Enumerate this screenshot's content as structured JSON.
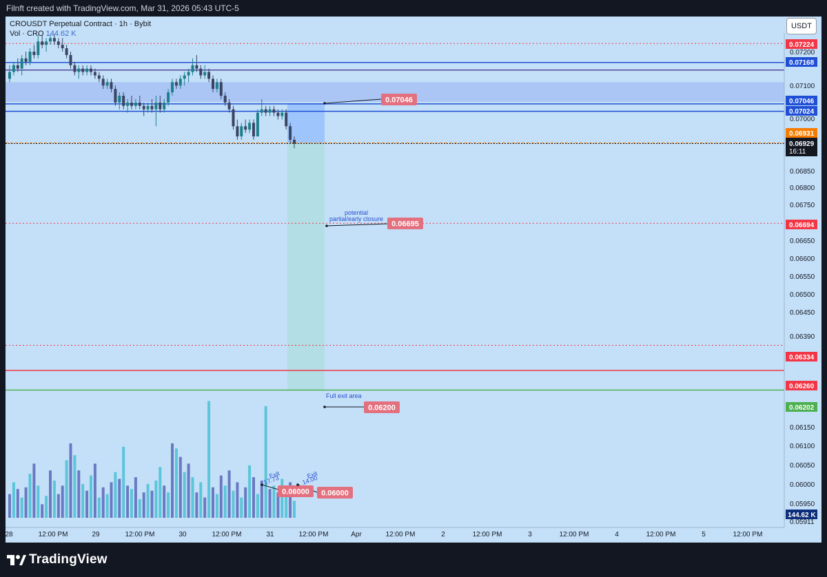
{
  "header": {
    "attribution": "Filnft created with TradingView.com, Mar 31, 2026 05:43 UTC-5"
  },
  "legend": {
    "symbol": "CROUSDT Perpetual Contract · 1h · Bybit",
    "volume_label": "Vol · CRO",
    "volume_value": "144.62 K"
  },
  "currency_button": "USDT",
  "footer": {
    "brand": "TradingView"
  },
  "colors": {
    "background": "#c4e0f8",
    "candle_up": "#1e7f8c",
    "candle_down": "#3a4563",
    "vol_up": "#5bc5d9",
    "vol_down": "#6a79c2",
    "price_line": "#1f4fd6",
    "label_red": "#e3707e",
    "label_red_strong": "#f23645",
    "label_green": "#4caf50",
    "label_orange": "#f57c00"
  },
  "chart_data": {
    "type": "candlestick",
    "interval": "1h",
    "x_axis_labels": [
      "28",
      "12:00 PM",
      "29",
      "12:00 PM",
      "30",
      "12:00 PM",
      "31",
      "12:00 PM",
      "Apr",
      "12:00 PM",
      "2",
      "12:00 PM",
      "3",
      "12:00 PM",
      "4",
      "12:00 PM",
      "5",
      "12:00 PM"
    ],
    "y_axis_ticks": [
      "0.07200",
      "0.07100",
      "0.07000",
      "0.06850",
      "0.06800",
      "0.06750",
      "0.06650",
      "0.06600",
      "0.06550",
      "0.06500",
      "0.06450",
      "0.06390",
      "0.06150",
      "0.06100",
      "0.06050",
      "0.06000",
      "0.05950",
      "0.05911"
    ],
    "horizontal_levels": [
      {
        "price": "0.07224",
        "style": "dotted",
        "tag": "red"
      },
      {
        "price": "0.07168",
        "style": "solid",
        "tag": "blue"
      },
      {
        "price": "0.07046",
        "style": "solid",
        "tag": "blue"
      },
      {
        "price": "0.07024",
        "style": "solid",
        "tag": "blue"
      },
      {
        "price": "0.06931",
        "style": "dashed",
        "tag": "orange"
      },
      {
        "price": "0.06694",
        "style": "dotted",
        "tag": "red"
      },
      {
        "price": "0.06334",
        "style": "dotted",
        "tag": "red"
      },
      {
        "price": "0.06260",
        "style": "solid",
        "tag": "red"
      },
      {
        "price": "0.06202",
        "style": "solid",
        "tag": "green"
      }
    ],
    "last_price": "0.06929",
    "countdown": "16:11",
    "volume_last": "144.62 K",
    "candles": [
      [
        0.0712,
        0.0716,
        0.0711,
        0.0714
      ],
      [
        0.0714,
        0.0717,
        0.0713,
        0.0716
      ],
      [
        0.0716,
        0.0718,
        0.0714,
        0.0715
      ],
      [
        0.0715,
        0.0719,
        0.0713,
        0.0718
      ],
      [
        0.0718,
        0.072,
        0.0716,
        0.0717
      ],
      [
        0.0717,
        0.0721,
        0.0716,
        0.072
      ],
      [
        0.072,
        0.0722,
        0.0718,
        0.0719
      ],
      [
        0.0719,
        0.0725,
        0.0718,
        0.0723
      ],
      [
        0.0723,
        0.0725,
        0.0721,
        0.0722
      ],
      [
        0.0722,
        0.0724,
        0.072,
        0.0723
      ],
      [
        0.0723,
        0.0725,
        0.0722,
        0.0724
      ],
      [
        0.0724,
        0.0725,
        0.0722,
        0.0723
      ],
      [
        0.0723,
        0.0724,
        0.0721,
        0.0722
      ],
      [
        0.0722,
        0.0724,
        0.072,
        0.0721
      ],
      [
        0.0721,
        0.0722,
        0.0718,
        0.0719
      ],
      [
        0.0719,
        0.072,
        0.0715,
        0.0716
      ],
      [
        0.0716,
        0.0717,
        0.0713,
        0.0714
      ],
      [
        0.0714,
        0.0716,
        0.0712,
        0.0715
      ],
      [
        0.0715,
        0.0716,
        0.0713,
        0.0714
      ],
      [
        0.0714,
        0.0716,
        0.0713,
        0.0715
      ],
      [
        0.0715,
        0.0716,
        0.0713,
        0.0714
      ],
      [
        0.0714,
        0.0715,
        0.0712,
        0.0713
      ],
      [
        0.0713,
        0.0714,
        0.0711,
        0.0712
      ],
      [
        0.0712,
        0.0713,
        0.0709,
        0.071
      ],
      [
        0.071,
        0.0712,
        0.0709,
        0.0711
      ],
      [
        0.0711,
        0.0712,
        0.0708,
        0.0709
      ],
      [
        0.0709,
        0.071,
        0.0704,
        0.0705
      ],
      [
        0.0705,
        0.0708,
        0.0703,
        0.0707
      ],
      [
        0.0707,
        0.0708,
        0.0703,
        0.0704
      ],
      [
        0.0704,
        0.0706,
        0.0702,
        0.0705
      ],
      [
        0.0705,
        0.0707,
        0.0703,
        0.0704
      ],
      [
        0.0704,
        0.0706,
        0.0703,
        0.0705
      ],
      [
        0.0705,
        0.0707,
        0.0703,
        0.0704
      ],
      [
        0.0704,
        0.0705,
        0.0701,
        0.0703
      ],
      [
        0.0703,
        0.0705,
        0.0702,
        0.0704
      ],
      [
        0.0704,
        0.0706,
        0.0702,
        0.0703
      ],
      [
        0.0703,
        0.0707,
        0.0698,
        0.0705
      ],
      [
        0.0705,
        0.0707,
        0.0702,
        0.0703
      ],
      [
        0.0703,
        0.0706,
        0.0702,
        0.0705
      ],
      [
        0.0705,
        0.0709,
        0.0704,
        0.0708
      ],
      [
        0.0708,
        0.0712,
        0.0707,
        0.0711
      ],
      [
        0.0711,
        0.0712,
        0.0709,
        0.071
      ],
      [
        0.071,
        0.0713,
        0.0709,
        0.0712
      ],
      [
        0.0712,
        0.0714,
        0.071,
        0.0713
      ],
      [
        0.0713,
        0.0715,
        0.0711,
        0.0714
      ],
      [
        0.0714,
        0.0718,
        0.0713,
        0.0716
      ],
      [
        0.0716,
        0.0719,
        0.0714,
        0.0715
      ],
      [
        0.0715,
        0.0716,
        0.0712,
        0.0713
      ],
      [
        0.0713,
        0.0716,
        0.0712,
        0.0714
      ],
      [
        0.0714,
        0.0715,
        0.0711,
        0.0712
      ],
      [
        0.0712,
        0.0713,
        0.0708,
        0.0709
      ],
      [
        0.0709,
        0.0712,
        0.0708,
        0.0711
      ],
      [
        0.0711,
        0.0712,
        0.0706,
        0.0707
      ],
      [
        0.0707,
        0.0708,
        0.0704,
        0.0705
      ],
      [
        0.0705,
        0.0706,
        0.0702,
        0.0703
      ],
      [
        0.0703,
        0.0704,
        0.0697,
        0.0698
      ],
      [
        0.0698,
        0.07,
        0.0694,
        0.0695
      ],
      [
        0.0695,
        0.0699,
        0.0694,
        0.0698
      ],
      [
        0.0698,
        0.07,
        0.0696,
        0.0697
      ],
      [
        0.0697,
        0.07,
        0.0696,
        0.0699
      ],
      [
        0.0699,
        0.07,
        0.0694,
        0.0695
      ],
      [
        0.0695,
        0.0703,
        0.0695,
        0.0702
      ],
      [
        0.0702,
        0.0706,
        0.0701,
        0.0703
      ],
      [
        0.0703,
        0.0704,
        0.0701,
        0.0702
      ],
      [
        0.0702,
        0.0704,
        0.0701,
        0.0703
      ],
      [
        0.0703,
        0.0704,
        0.0701,
        0.0702
      ],
      [
        0.0702,
        0.0703,
        0.07,
        0.0701
      ],
      [
        0.0701,
        0.0703,
        0.07,
        0.0702
      ],
      [
        0.0702,
        0.0703,
        0.0697,
        0.0698
      ],
      [
        0.0698,
        0.0699,
        0.0693,
        0.0694
      ],
      [
        0.0694,
        0.0695,
        0.06915,
        0.06929
      ]
    ],
    "volumes": [
      14,
      21,
      17,
      12,
      18,
      26,
      32,
      19,
      8,
      13,
      28,
      22,
      14,
      19,
      34,
      44,
      37,
      28,
      20,
      16,
      25,
      32,
      12,
      18,
      14,
      21,
      27,
      23,
      42,
      19,
      17,
      24,
      11,
      15,
      20,
      16,
      22,
      30,
      19,
      15,
      44,
      41,
      36,
      27,
      32,
      24,
      15,
      21,
      12,
      69,
      18,
      14,
      25,
      19,
      28,
      16,
      21,
      12,
      18,
      31,
      24,
      14,
      22,
      66,
      17,
      19,
      15,
      23,
      13,
      21,
      10
    ],
    "volume_up": [
      0,
      1,
      0,
      1,
      0,
      1,
      0,
      1,
      0,
      1,
      0,
      1,
      0,
      0,
      1,
      0,
      1,
      0,
      1,
      0,
      1,
      0,
      1,
      0,
      1,
      0,
      1,
      0,
      1,
      0,
      1,
      0,
      1,
      0,
      1,
      0,
      1,
      1,
      0,
      1,
      0,
      1,
      0,
      1,
      0,
      1,
      0,
      1,
      0,
      1,
      0,
      1,
      0,
      1,
      0,
      1,
      0,
      1,
      0,
      1,
      0,
      1,
      0,
      1,
      0,
      1,
      0,
      1,
      1,
      0,
      1
    ],
    "position_tool": {
      "entry": "0.06931",
      "stop": "0.07046",
      "target": "0.06200"
    },
    "annotations": [
      {
        "text": "0.07046",
        "kind": "price-label"
      },
      {
        "text": "0.06695",
        "kind": "price-label",
        "note_lines": [
          "potential",
          "partial/early closure"
        ]
      },
      {
        "text": "0.06200",
        "kind": "price-label",
        "note_lines": [
          "Full exit area"
        ]
      },
      {
        "text": "0.06000",
        "kind": "price-label",
        "note_lines": [
          "Exit",
          "17.73"
        ]
      },
      {
        "text": "0.06000",
        "kind": "price-label",
        "note_lines": [
          "Exit",
          "14.00"
        ]
      }
    ]
  }
}
